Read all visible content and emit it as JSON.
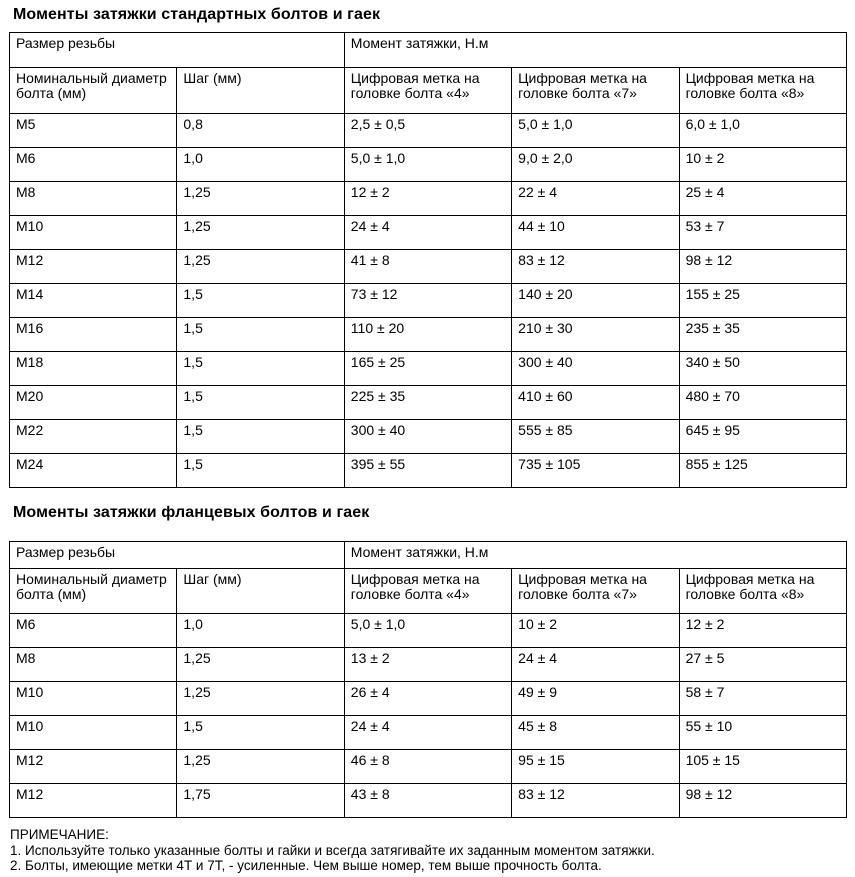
{
  "page": {
    "background": "#ffffff",
    "text_color": "#000000",
    "border_color": "#000000"
  },
  "table1": {
    "title": "Моменты затяжки стандартных болтов и гаек",
    "header": {
      "thread_size": "Размер резьбы",
      "torque": "Момент затяжки, Н.м",
      "col_diameter": "Номинальный диаметр болта (мм)",
      "col_pitch": "Шаг (мм)",
      "col_mark4": "Цифровая метка на головке болта «4»",
      "col_mark7": "Цифровая метка на головке болта «7»",
      "col_mark8": "Цифровая метка на головке болта «8»"
    },
    "rows": [
      [
        "М5",
        "0,8",
        "2,5 ± 0,5",
        "5,0 ± 1,0",
        "6,0 ± 1,0"
      ],
      [
        "М6",
        "1,0",
        "5,0 ± 1,0",
        "9,0 ± 2,0",
        "10 ± 2"
      ],
      [
        "М8",
        "1,25",
        "12 ± 2",
        "22 ± 4",
        "25 ± 4"
      ],
      [
        "М10",
        "1,25",
        "24 ± 4",
        "44 ± 10",
        "53 ± 7"
      ],
      [
        "М12",
        "1,25",
        "41 ± 8",
        "83 ± 12",
        "98 ± 12"
      ],
      [
        "М14",
        "1,5",
        "73 ± 12",
        "140 ± 20",
        "155 ± 25"
      ],
      [
        "М16",
        "1,5",
        "110 ± 20",
        "210 ± 30",
        "235 ± 35"
      ],
      [
        "М18",
        "1,5",
        "165 ± 25",
        "300 ± 40",
        "340 ± 50"
      ],
      [
        "М20",
        "1,5",
        "225 ± 35",
        "410 ± 60",
        "480 ± 70"
      ],
      [
        "М22",
        "1,5",
        "300 ± 40",
        "555 ± 85",
        "645 ± 95"
      ],
      [
        "М24",
        "1,5",
        "395 ± 55",
        "735 ± 105",
        "855 ± 125"
      ]
    ]
  },
  "table2": {
    "title": "Моменты затяжки фланцевых болтов и гаек",
    "header": {
      "thread_size": "Размер резьбы",
      "torque": "Момент затяжки, Н.м",
      "col_diameter": "Номинальный диаметр болта (мм)",
      "col_pitch": "Шаг (мм)",
      "col_mark4": "Цифровая метка на головке болта «4»",
      "col_mark7": "Цифровая метка на головке болта «7»",
      "col_mark8": "Цифровая метка на головке болта «8»"
    },
    "rows": [
      [
        "М6",
        "1,0",
        "5,0 ± 1,0",
        "10 ± 2",
        "12 ± 2"
      ],
      [
        "М8",
        "1,25",
        "13 ± 2",
        "24 ± 4",
        "27 ± 5"
      ],
      [
        "М10",
        "1,25",
        "26 ± 4",
        "49 ± 9",
        "58 ± 7"
      ],
      [
        "М10",
        "1,5",
        "24 ± 4",
        "45 ± 8",
        "55 ± 10"
      ],
      [
        "М12",
        "1,25",
        "46 ± 8",
        "95 ± 15",
        "105 ± 15"
      ],
      [
        "М12",
        "1,75",
        "43 ± 8",
        "83 ± 12",
        "98 ± 12"
      ]
    ]
  },
  "notes": {
    "title": "ПРИМЕЧАНИЕ:",
    "items": [
      "1. Используйте только указанные болты и гайки и всегда затягивайте их заданным моментом затяжки.",
      "2. Болты, имеющие метки 4Т и 7Т, - усиленные. Чем выше номер, тем выше прочность болта."
    ]
  }
}
